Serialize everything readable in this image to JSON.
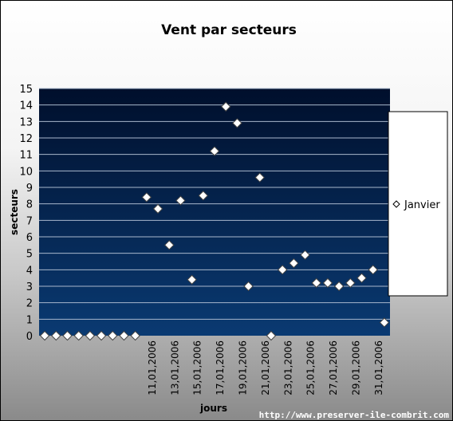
{
  "chart_data": {
    "type": "scatter",
    "title": "Vent par secteurs",
    "xlabel": "jours",
    "ylabel": "secteurs",
    "ylim": [
      0,
      15
    ],
    "yticks": [
      0,
      1,
      2,
      3,
      4,
      5,
      6,
      7,
      8,
      9,
      10,
      11,
      12,
      13,
      14,
      15
    ],
    "grid": true,
    "legend_position": "right",
    "x_tick_labels": [
      "11,01,2006",
      "13,01,2006",
      "15,01,2006",
      "17,01,2006",
      "19,01,2006",
      "21,01,2006",
      "23,01,2006",
      "25,01,2006",
      "27,01,2006",
      "29,01,2006",
      "31,01,2006"
    ],
    "series": [
      {
        "name": "Janvier",
        "values": [
          0,
          0,
          0,
          0,
          0,
          0,
          0,
          0,
          0,
          8.4,
          7.7,
          5.5,
          8.2,
          3.4,
          8.5,
          11.2,
          13.9,
          12.9,
          3.0,
          9.6,
          0,
          4.0,
          4.4,
          4.9,
          3.2,
          3.2,
          3.0,
          3.2,
          3.5,
          4.0,
          0.8
        ]
      }
    ]
  },
  "watermark": "http://www.preserver-ile-combrit.com",
  "colors": {
    "plot_top": "#000f2c",
    "plot_bottom": "#0a3a72",
    "grid": "#a9b7cc",
    "marker_fill": "#ffffff",
    "marker_stroke": "#444444"
  }
}
